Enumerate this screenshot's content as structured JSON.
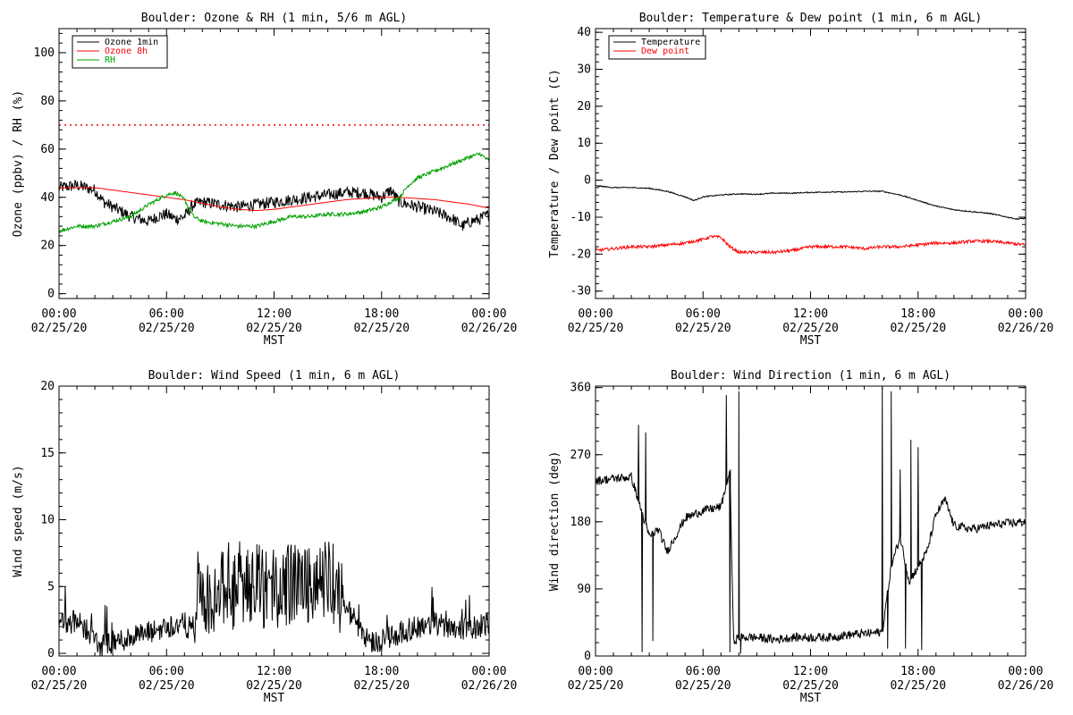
{
  "chart_data": [
    {
      "id": "ozone",
      "type": "line",
      "title": "Boulder: Ozone & RH (1 min, 5/6 m AGL)",
      "ylabel": "Ozone (ppbv) / RH (%)",
      "xlabel": "MST",
      "ylim": [
        -2,
        110
      ],
      "yticks": [
        0,
        20,
        40,
        60,
        80,
        100
      ],
      "xlim": [
        0,
        24
      ],
      "xtick_times": [
        "00:00",
        "06:00",
        "12:00",
        "18:00",
        "00:00"
      ],
      "xtick_dates": [
        "02/25/20",
        "02/25/20",
        "02/25/20",
        "02/25/20",
        "02/26/20"
      ],
      "reference_line": {
        "y": 70,
        "color": "#ff0000",
        "style": "dotted"
      },
      "legend": "top-left",
      "series": [
        {
          "name": "Ozone 1min",
          "color": "#000000",
          "x": [
            0,
            1,
            2,
            2.5,
            3,
            3.5,
            4,
            5,
            5.5,
            6,
            6.5,
            7,
            7.5,
            8,
            9,
            10,
            11,
            12,
            13,
            14,
            15,
            16,
            17,
            18,
            18.5,
            19,
            20,
            21,
            22,
            22.5,
            23,
            23.5,
            24
          ],
          "y": [
            44,
            45,
            43,
            38,
            36,
            34,
            32,
            30,
            32,
            33,
            31,
            32,
            37,
            38,
            37,
            36,
            37,
            38,
            39,
            40,
            41,
            42,
            42,
            40,
            43,
            38,
            36,
            34,
            31,
            28,
            30,
            31,
            33
          ],
          "noise": 2.5
        },
        {
          "name": "Ozone 8h",
          "color": "#ff0000",
          "x": [
            0,
            2,
            3,
            4,
            5,
            6,
            7,
            8,
            9,
            10,
            11,
            12,
            13,
            14,
            15,
            16,
            17,
            18,
            19,
            20,
            21,
            22,
            23,
            24
          ],
          "y": [
            44,
            44,
            43,
            42,
            41,
            40,
            39,
            37.5,
            36,
            35,
            34.5,
            35,
            36,
            37,
            38,
            39,
            39.5,
            40,
            40,
            39.5,
            39,
            38,
            37,
            35.5
          ],
          "noise": 0
        },
        {
          "name": "RH",
          "color": "#00a000",
          "x": [
            0,
            1,
            2,
            3,
            4,
            5,
            6,
            6.5,
            7,
            7.5,
            8,
            9,
            10,
            11,
            12,
            13,
            14,
            15,
            16,
            17,
            18,
            19,
            19.5,
            20,
            21,
            22,
            23,
            23.5,
            24
          ],
          "y": [
            26,
            28,
            28,
            30,
            32,
            37,
            41,
            42,
            39,
            32,
            30,
            29,
            28,
            28,
            30,
            32,
            32,
            33,
            33,
            34,
            36,
            40,
            45,
            48,
            51,
            54,
            57,
            58,
            55
          ],
          "noise": 0.8
        }
      ]
    },
    {
      "id": "temperature",
      "type": "line",
      "title": "Boulder: Temperature & Dew point (1 min, 6 m AGL)",
      "ylabel": "Temperature / Dew point (C)",
      "xlabel": "MST",
      "ylim": [
        -32,
        41
      ],
      "yticks": [
        -30,
        -20,
        -10,
        0,
        10,
        20,
        30,
        40
      ],
      "xlim": [
        0,
        24
      ],
      "xtick_times": [
        "00:00",
        "06:00",
        "12:00",
        "18:00",
        "00:00"
      ],
      "xtick_dates": [
        "02/25/20",
        "02/25/20",
        "02/25/20",
        "02/25/20",
        "02/26/20"
      ],
      "legend": "top-left",
      "series": [
        {
          "name": "Temperature",
          "color": "#000000",
          "x": [
            0,
            1,
            2,
            3,
            4,
            5,
            5.5,
            6,
            7,
            8,
            9,
            10,
            11,
            12,
            13,
            14,
            15,
            16,
            17,
            18,
            19,
            20,
            21,
            22,
            23,
            23.5,
            24
          ],
          "y": [
            -1.5,
            -2,
            -2,
            -2.2,
            -3,
            -4.5,
            -5.5,
            -4.5,
            -4,
            -3.7,
            -3.8,
            -3.5,
            -3.5,
            -3.3,
            -3.2,
            -3.2,
            -3,
            -3,
            -4,
            -5.5,
            -7,
            -8,
            -8.5,
            -9,
            -10,
            -10.5,
            -10.3
          ],
          "noise": 0.15
        },
        {
          "name": "Dew point",
          "color": "#ff0000",
          "x": [
            0,
            1,
            2,
            3,
            4,
            5,
            6,
            6.5,
            7,
            7.5,
            8,
            9,
            10,
            11,
            12,
            13,
            14,
            15,
            16,
            17,
            18,
            19,
            20,
            21,
            22,
            23,
            24
          ],
          "y": [
            -19,
            -18.5,
            -18,
            -18,
            -17.5,
            -17,
            -16,
            -15.2,
            -15.5,
            -18,
            -19.5,
            -19.5,
            -19.5,
            -19,
            -18,
            -18,
            -18,
            -18.5,
            -18,
            -18,
            -17.5,
            -17,
            -17,
            -16.5,
            -16.5,
            -17,
            -17.5
          ],
          "noise": 0.4
        }
      ]
    },
    {
      "id": "windspeed",
      "type": "line",
      "title": "Boulder: Wind Speed (1 min, 6 m AGL)",
      "ylabel": "Wind speed (m/s)",
      "xlabel": "MST",
      "ylim": [
        -0.2,
        20
      ],
      "yticks": [
        0,
        5,
        10,
        15,
        20
      ],
      "xlim": [
        0,
        24
      ],
      "xtick_times": [
        "00:00",
        "06:00",
        "12:00",
        "18:00",
        "00:00"
      ],
      "xtick_dates": [
        "02/25/20",
        "02/25/20",
        "02/25/20",
        "02/25/20",
        "02/26/20"
      ],
      "series": [
        {
          "name": "",
          "color": "#000000",
          "x": [
            0,
            1,
            1.8,
            2.2,
            3,
            4,
            5,
            6,
            7,
            7.6,
            7.8,
            8.2,
            9,
            10,
            11,
            12,
            13,
            14,
            15,
            15.5,
            16,
            17,
            17.5,
            18,
            19,
            20,
            21,
            22,
            23,
            24
          ],
          "y": [
            2.5,
            2.3,
            1.5,
            0.5,
            0.8,
            1.2,
            1.5,
            2.0,
            2.2,
            1.5,
            5.5,
            4.5,
            4.5,
            4.8,
            5.0,
            5.0,
            5.2,
            5.5,
            5.5,
            5.0,
            3.5,
            1.5,
            0.8,
            1.0,
            1.5,
            2.0,
            2.2,
            2.0,
            1.8,
            2.3
          ],
          "noise": 0.9,
          "spiky": true
        }
      ]
    },
    {
      "id": "winddir",
      "type": "line",
      "title": "Boulder: Wind Direction (1 min, 6 m AGL)",
      "ylabel": "Wind direction (deg)",
      "xlabel": "MST",
      "ylim": [
        0,
        362
      ],
      "yticks": [
        0,
        90,
        180,
        270,
        360
      ],
      "xlim": [
        0,
        24
      ],
      "xtick_times": [
        "00:00",
        "06:00",
        "12:00",
        "18:00",
        "00:00"
      ],
      "xtick_dates": [
        "02/25/20",
        "02/25/20",
        "02/25/20",
        "02/25/20",
        "02/26/20"
      ],
      "series": [
        {
          "name": "",
          "color": "#000000",
          "x": [
            0,
            1,
            2,
            2.5,
            3,
            3.5,
            4,
            5,
            6,
            7,
            7.2,
            7.5,
            7.7,
            8,
            9,
            10,
            11,
            12,
            13,
            14,
            15,
            16,
            16.5,
            17,
            17.5,
            18,
            18.5,
            19,
            19.5,
            20,
            21,
            22,
            23,
            24
          ],
          "y": [
            235,
            238,
            240,
            200,
            160,
            170,
            140,
            185,
            195,
            200,
            220,
            250,
            20,
            25,
            25,
            22,
            25,
            25,
            25,
            28,
            30,
            32,
            120,
            160,
            100,
            120,
            140,
            190,
            210,
            175,
            170,
            175,
            178,
            180
          ],
          "noise": 6,
          "spikes": [
            [
              2.4,
              310
            ],
            [
              2.6,
              5
            ],
            [
              2.8,
              300
            ],
            [
              3.2,
              20
            ],
            [
              7.3,
              350
            ],
            [
              7.5,
              5
            ],
            [
              8.0,
              355
            ],
            [
              8.1,
              3
            ],
            [
              16.0,
              360
            ],
            [
              16.3,
              10
            ],
            [
              16.5,
              355
            ],
            [
              17.0,
              250
            ],
            [
              17.3,
              10
            ],
            [
              17.6,
              290
            ],
            [
              18.0,
              280
            ],
            [
              18.2,
              8
            ]
          ]
        }
      ]
    }
  ]
}
